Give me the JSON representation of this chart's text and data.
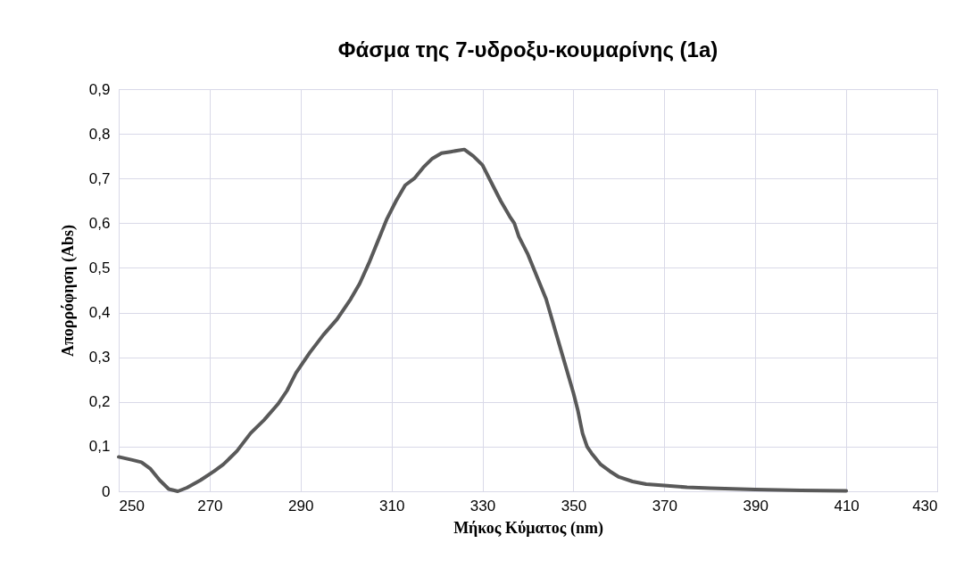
{
  "chart_data": {
    "type": "line",
    "title": "Φάσμα της 7-υδροξυ-κουμαρίνης (1a)",
    "xlabel": "Μήκος Κύματος (nm)",
    "ylabel": "Απορρόφηση (Abs)",
    "x": [
      250,
      253,
      255,
      257,
      259,
      261,
      263,
      265,
      268,
      271,
      273,
      276,
      279,
      282,
      285,
      287,
      289,
      292,
      295,
      298,
      301,
      303,
      305,
      307,
      309,
      311,
      313,
      315,
      317,
      319,
      321,
      323,
      326,
      328,
      330,
      332,
      334,
      336,
      337,
      338,
      340,
      342,
      344,
      346,
      348,
      350,
      351,
      352,
      353,
      354,
      356,
      358,
      360,
      363,
      366,
      370,
      375,
      380,
      390,
      400,
      410
    ],
    "series": [
      {
        "color": "#595959",
        "values": [
          0.077,
          0.07,
          0.065,
          0.05,
          0.025,
          0.005,
          0.0,
          0.008,
          0.025,
          0.045,
          0.06,
          0.09,
          0.13,
          0.16,
          0.195,
          0.225,
          0.265,
          0.31,
          0.35,
          0.385,
          0.43,
          0.465,
          0.51,
          0.56,
          0.61,
          0.65,
          0.685,
          0.7,
          0.725,
          0.745,
          0.757,
          0.76,
          0.765,
          0.75,
          0.73,
          0.69,
          0.65,
          0.615,
          0.6,
          0.57,
          0.53,
          0.48,
          0.43,
          0.36,
          0.29,
          0.22,
          0.18,
          0.13,
          0.1,
          0.085,
          0.06,
          0.045,
          0.032,
          0.022,
          0.016,
          0.013,
          0.009,
          0.007,
          0.004,
          0.002,
          0.001
        ]
      }
    ],
    "xlim": [
      250,
      430
    ],
    "xticks": [
      250,
      270,
      290,
      310,
      330,
      350,
      370,
      390,
      410,
      430
    ],
    "ylim": [
      0,
      0.9
    ],
    "yticks": [
      0,
      {
        "value": 0.1,
        "label": "0,1"
      },
      {
        "value": 0.2,
        "label": "0,2"
      },
      {
        "value": 0.3,
        "label": "0,3"
      },
      {
        "value": 0.4,
        "label": "0,4"
      },
      {
        "value": 0.5,
        "label": "0,5"
      },
      {
        "value": 0.6,
        "label": "0,6"
      },
      {
        "value": 0.7,
        "label": "0,7"
      },
      {
        "value": 0.8,
        "label": "0,8"
      },
      {
        "value": 0.9,
        "label": "0,9"
      }
    ],
    "grid": true,
    "legend": false,
    "marker": "none",
    "line_style": "solid"
  }
}
